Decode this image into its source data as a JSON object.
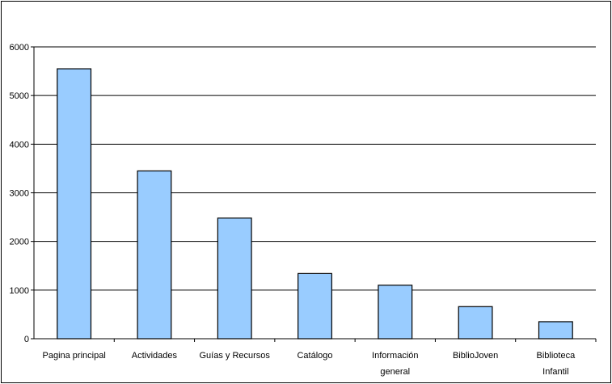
{
  "chart_data": {
    "type": "bar",
    "categories": [
      [
        "Pagina principal"
      ],
      [
        "Actividades"
      ],
      [
        "Guías y Recursos"
      ],
      [
        "Catálogo"
      ],
      [
        "Información",
        "general"
      ],
      [
        "BiblioJoven"
      ],
      [
        "Biblioteca",
        "Infantil"
      ]
    ],
    "values": [
      5550,
      3450,
      2480,
      1340,
      1100,
      660,
      350
    ],
    "ylim": [
      0,
      6000
    ],
    "yticks": [
      0,
      1000,
      2000,
      3000,
      4000,
      5000,
      6000
    ],
    "grid": true,
    "legend": "none",
    "colors": {
      "bar_fill": "#99CCFF",
      "bar_stroke": "#000000",
      "grid": "#000000",
      "axis": "#000000",
      "background": "#ffffff"
    }
  }
}
